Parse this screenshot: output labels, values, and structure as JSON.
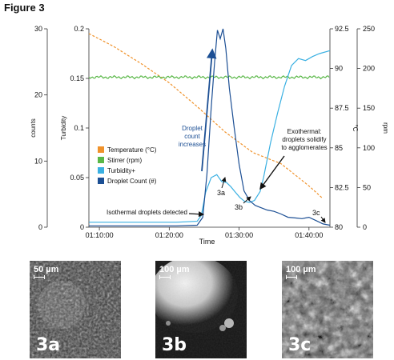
{
  "figure_label": "Figure 3",
  "chart_data": {
    "type": "line",
    "xlabel": "Time",
    "x_ticks": [
      "01:10:00",
      "01:20:00",
      "01:30:00",
      "01:40:00"
    ],
    "x_tick_minutes": [
      70,
      80,
      90,
      100
    ],
    "xlim": [
      68.5,
      103
    ],
    "axes": {
      "counts": {
        "label": "counts",
        "ticks": [
          0,
          10,
          20,
          30
        ],
        "ylim": [
          0,
          30
        ]
      },
      "turbidity": {
        "label": "Turbidity",
        "ticks": [
          "0",
          "0.05",
          "0.1",
          "0.15",
          "0.2"
        ],
        "ylim": [
          0,
          0.2
        ]
      },
      "temperature": {
        "label": "°C",
        "ticks": [
          "80",
          "82.5",
          "85",
          "87.5",
          "90",
          "92.5"
        ],
        "ylim": [
          80,
          92.5
        ]
      },
      "stirrer": {
        "label": "rpm",
        "ticks": [
          "0",
          "50",
          "100",
          "150",
          "200",
          "250"
        ],
        "ylim": [
          0,
          250
        ]
      }
    },
    "legend": [
      {
        "name": "Temperature (°C)",
        "color": "#f0922b"
      },
      {
        "name": "Stirrer (rpm)",
        "color": "#5ab848"
      },
      {
        "name": "Turbidity+",
        "color": "#3ab0e2"
      },
      {
        "name": "Droplet Count (#)",
        "color": "#1c4f94"
      }
    ],
    "series": [
      {
        "name": "Temperature (°C)",
        "axis": "temperature",
        "style": "dashed",
        "x": [
          68.5,
          72,
          76,
          80,
          84,
          88,
          92,
          96,
          100,
          102
        ],
        "y": [
          92.2,
          91.4,
          90.3,
          89.1,
          87.6,
          86.0,
          84.7,
          84.0,
          82.6,
          81.8
        ]
      },
      {
        "name": "Stirrer (rpm)",
        "axis": "stirrer",
        "style": "noisy",
        "x": [
          68.5,
          103
        ],
        "y": [
          189,
          189
        ]
      },
      {
        "name": "Turbidity+",
        "axis": "turbidity",
        "x": [
          68.5,
          77,
          81,
          84,
          84.6,
          85.2,
          86,
          86.8,
          87.5,
          88.2,
          88.8,
          89.5,
          90.1,
          90.8,
          91.5,
          92.2,
          93,
          93.5,
          94.5,
          95.5,
          96.5,
          97.5,
          98.5,
          99.5,
          100.5,
          101.5,
          103
        ],
        "y": [
          0.005,
          0.005,
          0.005,
          0.006,
          0.012,
          0.035,
          0.05,
          0.053,
          0.046,
          0.045,
          0.041,
          0.035,
          0.03,
          0.026,
          0.025,
          0.027,
          0.036,
          0.05,
          0.085,
          0.115,
          0.142,
          0.163,
          0.17,
          0.168,
          0.172,
          0.175,
          0.178
        ]
      },
      {
        "name": "Droplet Count (#)",
        "axis": "counts",
        "x": [
          68.5,
          77,
          81,
          84,
          84.8,
          85.4,
          86,
          86.5,
          86.9,
          87.3,
          87.7,
          88.1,
          88.6,
          89.3,
          90,
          90.7,
          91.5,
          92.3,
          93,
          94,
          95,
          96,
          97,
          98,
          99,
          100,
          101,
          102,
          103
        ],
        "y": [
          0.2,
          0.2,
          0.2,
          0.3,
          1.5,
          8,
          18,
          25,
          29.8,
          28.5,
          30,
          27,
          21,
          15,
          9.5,
          5.5,
          4,
          3.3,
          3,
          2.6,
          2.4,
          2,
          1.5,
          1.4,
          1.3,
          1.5,
          1.0,
          0.5,
          0.3
        ]
      }
    ],
    "annotations": {
      "droplet_increase": [
        "Droplet",
        "count",
        "increases"
      ],
      "exothermal": [
        "Exothermal:",
        "droplets solidify",
        "to agglomerates"
      ],
      "isothermal": "Isothermal droplets detected",
      "label_3a": "3a",
      "label_3b": "3b",
      "label_3c": "3c"
    }
  },
  "micrographs": [
    {
      "scale": "50 µm",
      "tag": "3a"
    },
    {
      "scale": "100 µm",
      "tag": "3b"
    },
    {
      "scale": "100 µm",
      "tag": "3c"
    }
  ]
}
